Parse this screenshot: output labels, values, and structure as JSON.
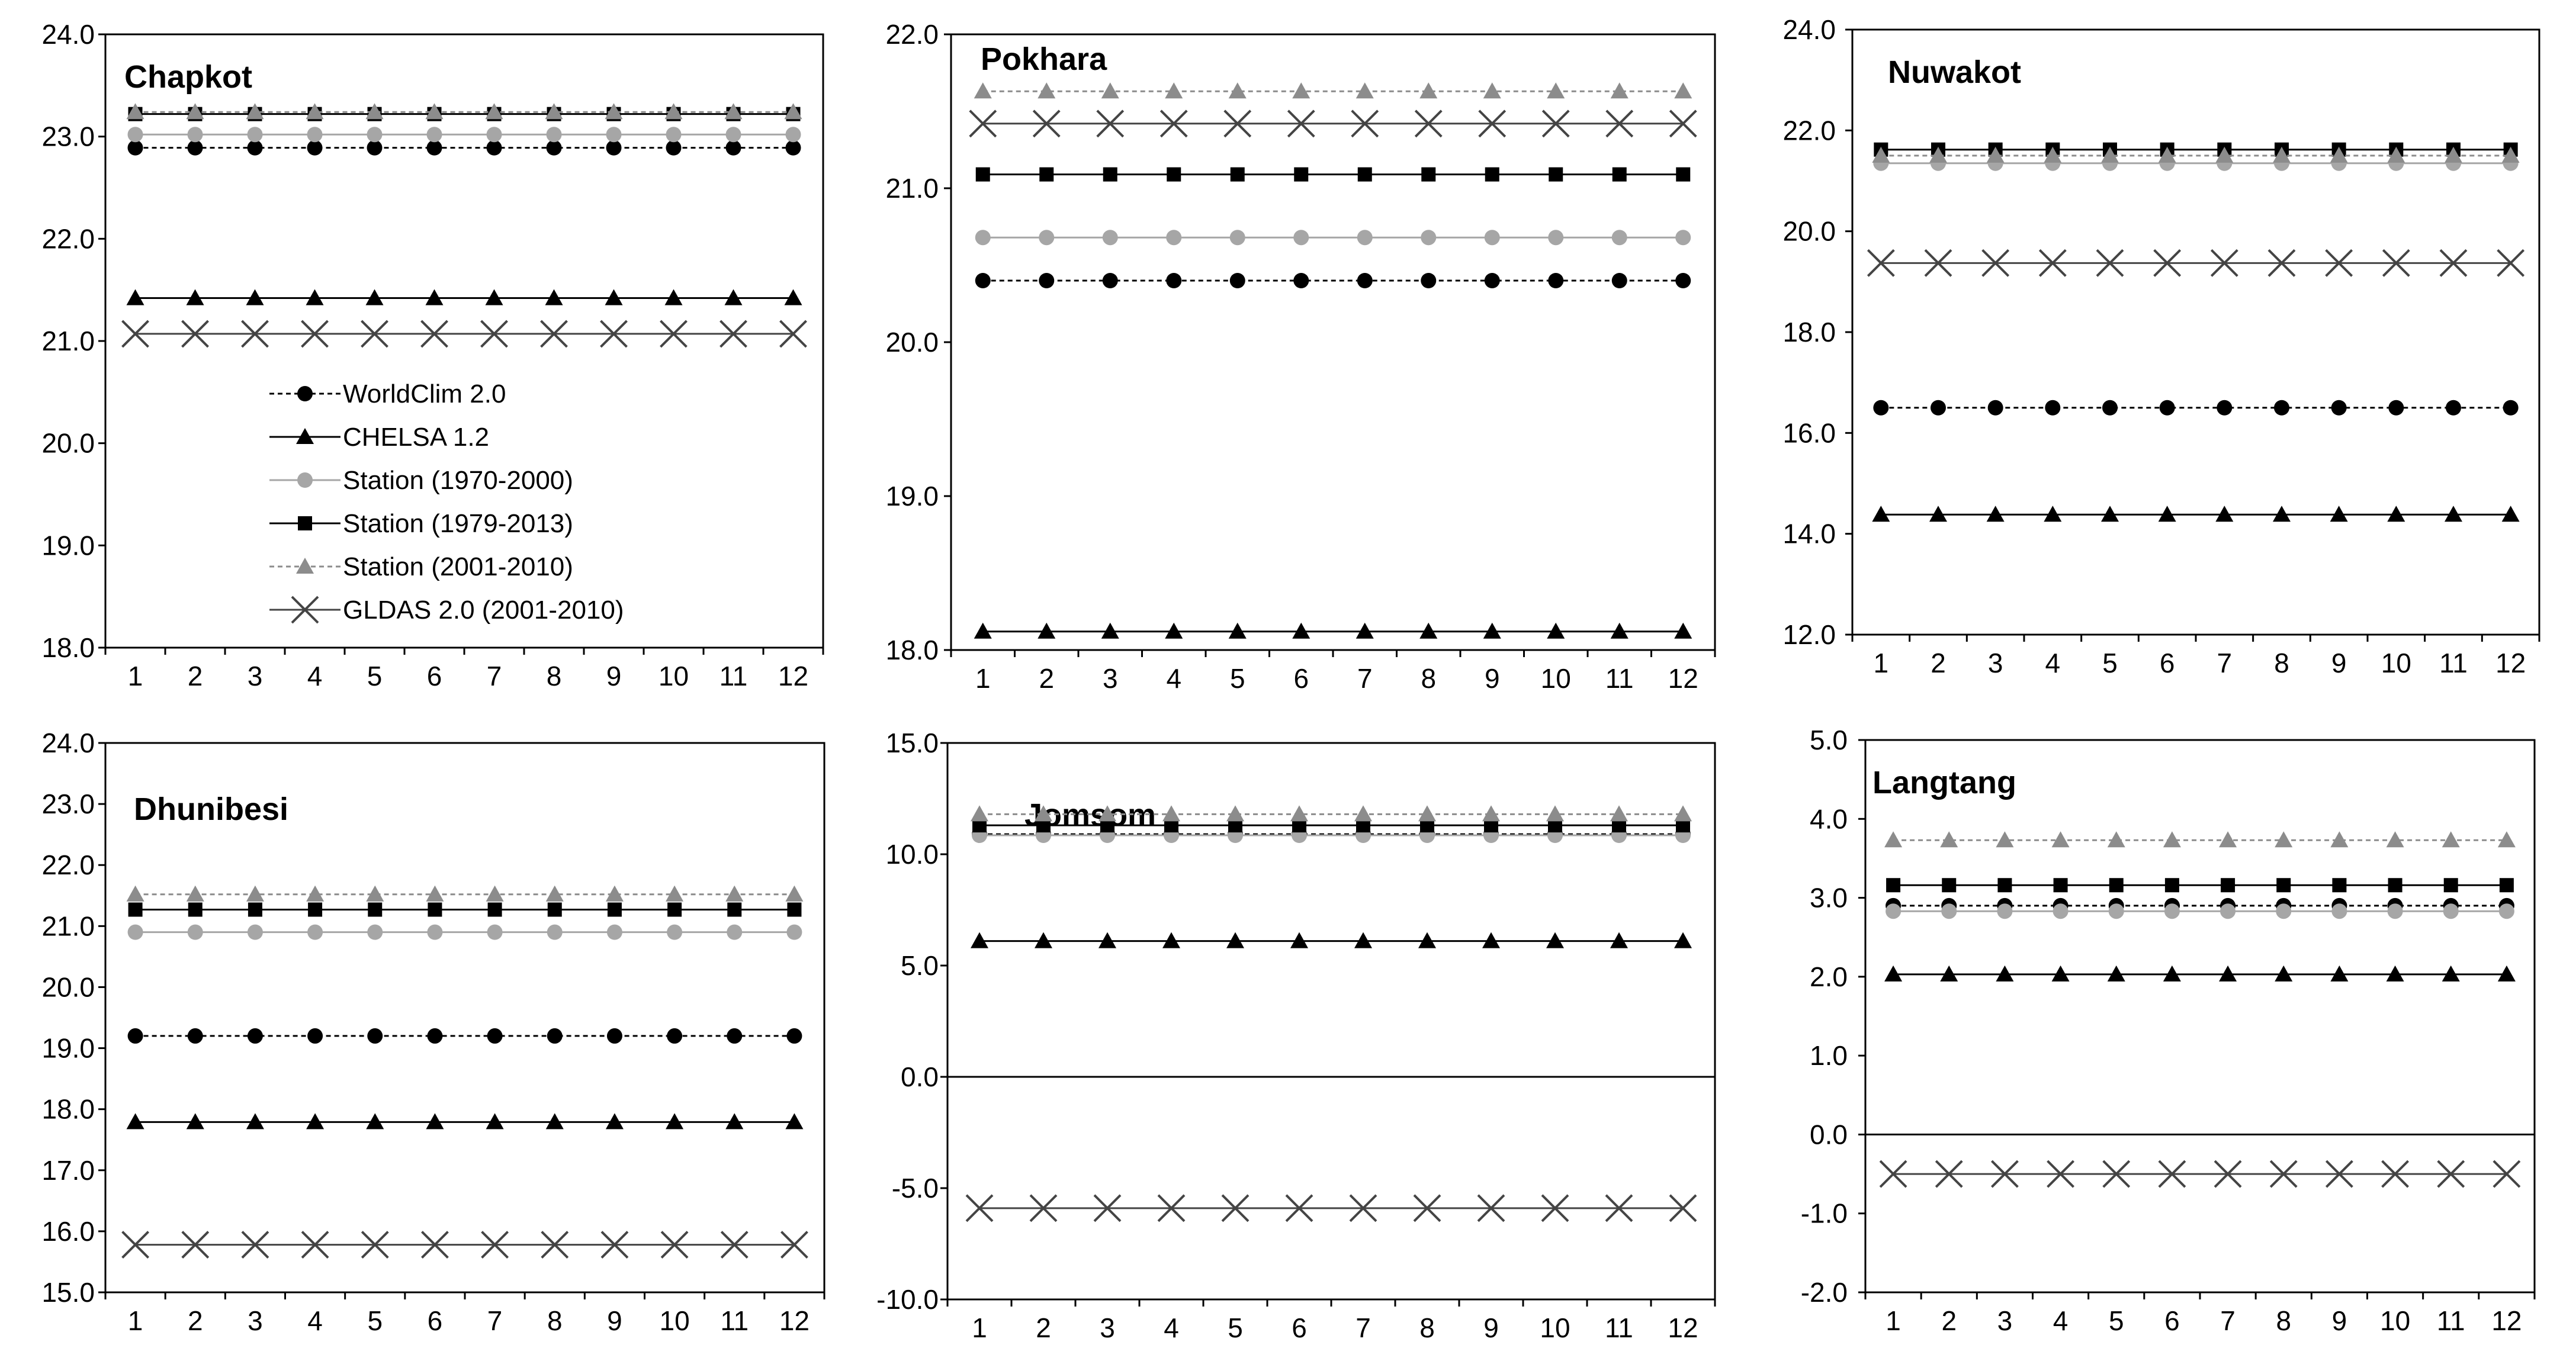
{
  "series_styles": [
    {
      "name": "WorldClim 2.0",
      "color": "#000000",
      "dash": true,
      "marker": "circle"
    },
    {
      "name": "CHELSA 1.2",
      "color": "#000000",
      "dash": false,
      "marker": "triangle"
    },
    {
      "name": "Station (1970-2000)",
      "color": "#a6a6a6",
      "dash": false,
      "marker": "circle"
    },
    {
      "name": "Station (1979-2013)",
      "color": "#000000",
      "dash": false,
      "marker": "square"
    },
    {
      "name": "Station (2001-2010)",
      "color": "#8c8c8c",
      "dash": true,
      "marker": "triangle"
    },
    {
      "name": "GLDAS 2.0 (2001-2010)",
      "color": "#444444",
      "dash": false,
      "marker": "x"
    }
  ],
  "chart_data": [
    {
      "type": "line",
      "title": "Chapkot",
      "categories": [
        "1",
        "2",
        "3",
        "4",
        "5",
        "6",
        "7",
        "8",
        "9",
        "10",
        "11",
        "12"
      ],
      "ylim": [
        18,
        24
      ],
      "yticks": [
        "18.0",
        "19.0",
        "20.0",
        "21.0",
        "22.0",
        "23.0",
        "24.0"
      ],
      "legend": "center-left",
      "series": [
        {
          "name": "WorldClim 2.0",
          "values": [
            22.89,
            22.89,
            22.89,
            22.89,
            22.89,
            22.89,
            22.89,
            22.89,
            22.89,
            22.89,
            22.89,
            22.89
          ]
        },
        {
          "name": "CHELSA 1.2",
          "values": [
            21.42,
            21.42,
            21.42,
            21.42,
            21.42,
            21.42,
            21.42,
            21.42,
            21.42,
            21.42,
            21.42,
            21.42
          ]
        },
        {
          "name": "Station (1970-2000)",
          "values": [
            23.02,
            23.02,
            23.02,
            23.02,
            23.02,
            23.02,
            23.02,
            23.02,
            23.02,
            23.02,
            23.02,
            23.02
          ]
        },
        {
          "name": "Station (1979-2013)",
          "values": [
            23.22,
            23.22,
            23.22,
            23.22,
            23.22,
            23.22,
            23.22,
            23.22,
            23.22,
            23.22,
            23.22,
            23.22
          ]
        },
        {
          "name": "Station (2001-2010)",
          "values": [
            23.24,
            23.24,
            23.24,
            23.24,
            23.24,
            23.24,
            23.24,
            23.24,
            23.24,
            23.24,
            23.24,
            23.24
          ]
        },
        {
          "name": "GLDAS 2.0 (2001-2010)",
          "values": [
            21.07,
            21.07,
            21.07,
            21.07,
            21.07,
            21.07,
            21.07,
            21.07,
            21.07,
            21.07,
            21.07,
            21.07
          ]
        }
      ]
    },
    {
      "type": "line",
      "title": "Pokhara",
      "categories": [
        "1",
        "2",
        "3",
        "4",
        "5",
        "6",
        "7",
        "8",
        "9",
        "10",
        "11",
        "12"
      ],
      "ylim": [
        18,
        22
      ],
      "yticks": [
        "18.0",
        "19.0",
        "20.0",
        "21.0",
        "22.0"
      ],
      "series": [
        {
          "name": "WorldClim 2.0",
          "values": [
            20.4,
            20.4,
            20.4,
            20.4,
            20.4,
            20.4,
            20.4,
            20.4,
            20.4,
            20.4,
            20.4,
            20.4
          ]
        },
        {
          "name": "CHELSA 1.2",
          "values": [
            18.12,
            18.12,
            18.12,
            18.12,
            18.12,
            18.12,
            18.12,
            18.12,
            18.12,
            18.12,
            18.12,
            18.12
          ]
        },
        {
          "name": "Station (1970-2000)",
          "values": [
            20.68,
            20.68,
            20.68,
            20.68,
            20.68,
            20.68,
            20.68,
            20.68,
            20.68,
            20.68,
            20.68,
            20.68
          ]
        },
        {
          "name": "Station (1979-2013)",
          "values": [
            21.09,
            21.09,
            21.09,
            21.09,
            21.09,
            21.09,
            21.09,
            21.09,
            21.09,
            21.09,
            21.09,
            21.09
          ]
        },
        {
          "name": "Station (2001-2010)",
          "values": [
            21.63,
            21.63,
            21.63,
            21.63,
            21.63,
            21.63,
            21.63,
            21.63,
            21.63,
            21.63,
            21.63,
            21.63
          ]
        },
        {
          "name": "GLDAS 2.0 (2001-2010)",
          "values": [
            21.42,
            21.42,
            21.42,
            21.42,
            21.42,
            21.42,
            21.42,
            21.42,
            21.42,
            21.42,
            21.42,
            21.42
          ]
        }
      ]
    },
    {
      "type": "line",
      "title": "Nuwakot",
      "categories": [
        "1",
        "2",
        "3",
        "4",
        "5",
        "6",
        "7",
        "8",
        "9",
        "10",
        "11",
        "12"
      ],
      "ylim": [
        12,
        24
      ],
      "yticks": [
        "12.0",
        "14.0",
        "16.0",
        "18.0",
        "20.0",
        "22.0",
        "24.0"
      ],
      "series": [
        {
          "name": "WorldClim 2.0",
          "values": [
            16.5,
            16.5,
            16.5,
            16.5,
            16.5,
            16.5,
            16.5,
            16.5,
            16.5,
            16.5,
            16.5,
            16.5
          ]
        },
        {
          "name": "CHELSA 1.2",
          "values": [
            14.38,
            14.38,
            14.38,
            14.38,
            14.38,
            14.38,
            14.38,
            14.38,
            14.38,
            14.38,
            14.38,
            14.38
          ]
        },
        {
          "name": "Station (1970-2000)",
          "values": [
            21.35,
            21.35,
            21.35,
            21.35,
            21.35,
            21.35,
            21.35,
            21.35,
            21.35,
            21.35,
            21.35,
            21.35
          ]
        },
        {
          "name": "Station (1979-2013)",
          "values": [
            21.62,
            21.62,
            21.62,
            21.62,
            21.62,
            21.62,
            21.62,
            21.62,
            21.62,
            21.62,
            21.62,
            21.62
          ]
        },
        {
          "name": "Station (2001-2010)",
          "values": [
            21.5,
            21.5,
            21.5,
            21.5,
            21.5,
            21.5,
            21.5,
            21.5,
            21.5,
            21.5,
            21.5,
            21.5
          ]
        },
        {
          "name": "GLDAS 2.0 (2001-2010)",
          "values": [
            19.37,
            19.37,
            19.37,
            19.37,
            19.37,
            19.37,
            19.37,
            19.37,
            19.37,
            19.37,
            19.37,
            19.37
          ]
        }
      ]
    },
    {
      "type": "line",
      "title": "Dhunibesi",
      "categories": [
        "1",
        "2",
        "3",
        "4",
        "5",
        "6",
        "7",
        "8",
        "9",
        "10",
        "11",
        "12"
      ],
      "ylim": [
        15,
        24
      ],
      "yticks": [
        "15.0",
        "16.0",
        "17.0",
        "18.0",
        "19.0",
        "20.0",
        "21.0",
        "22.0",
        "23.0",
        "24.0"
      ],
      "series": [
        {
          "name": "WorldClim 2.0",
          "values": [
            19.2,
            19.2,
            19.2,
            19.2,
            19.2,
            19.2,
            19.2,
            19.2,
            19.2,
            19.2,
            19.2,
            19.2
          ]
        },
        {
          "name": "CHELSA 1.2",
          "values": [
            17.79,
            17.79,
            17.79,
            17.79,
            17.79,
            17.79,
            17.79,
            17.79,
            17.79,
            17.79,
            17.79,
            17.79
          ]
        },
        {
          "name": "Station (1970-2000)",
          "values": [
            20.9,
            20.9,
            20.9,
            20.9,
            20.9,
            20.9,
            20.9,
            20.9,
            20.9,
            20.9,
            20.9,
            20.9
          ]
        },
        {
          "name": "Station (1979-2013)",
          "values": [
            21.27,
            21.27,
            21.27,
            21.27,
            21.27,
            21.27,
            21.27,
            21.27,
            21.27,
            21.27,
            21.27,
            21.27
          ]
        },
        {
          "name": "Station (2001-2010)",
          "values": [
            21.52,
            21.52,
            21.52,
            21.52,
            21.52,
            21.52,
            21.52,
            21.52,
            21.52,
            21.52,
            21.52,
            21.52
          ]
        },
        {
          "name": "GLDAS 2.0 (2001-2010)",
          "values": [
            15.78,
            15.78,
            15.78,
            15.78,
            15.78,
            15.78,
            15.78,
            15.78,
            15.78,
            15.78,
            15.78,
            15.78
          ]
        }
      ]
    },
    {
      "type": "line",
      "title": "Jomsom",
      "categories": [
        "1",
        "2",
        "3",
        "4",
        "5",
        "6",
        "7",
        "8",
        "9",
        "10",
        "11",
        "12"
      ],
      "ylim": [
        -10,
        15
      ],
      "yticks": [
        "-10.0",
        "-5.0",
        "0.0",
        "5.0",
        "10.0",
        "15.0"
      ],
      "series": [
        {
          "name": "WorldClim 2.0",
          "values": [
            10.9,
            10.9,
            10.9,
            10.9,
            10.9,
            10.9,
            10.9,
            10.9,
            10.9,
            10.9,
            10.9,
            10.9
          ]
        },
        {
          "name": "CHELSA 1.2",
          "values": [
            6.1,
            6.1,
            6.1,
            6.1,
            6.1,
            6.1,
            6.1,
            6.1,
            6.1,
            6.1,
            6.1,
            6.1
          ]
        },
        {
          "name": "Station (1970-2000)",
          "values": [
            10.85,
            10.85,
            10.85,
            10.85,
            10.85,
            10.85,
            10.85,
            10.85,
            10.85,
            10.85,
            10.85,
            10.85
          ]
        },
        {
          "name": "Station (1979-2013)",
          "values": [
            11.3,
            11.3,
            11.3,
            11.3,
            11.3,
            11.3,
            11.3,
            11.3,
            11.3,
            11.3,
            11.3,
            11.3
          ]
        },
        {
          "name": "Station (2001-2010)",
          "values": [
            11.8,
            11.8,
            11.8,
            11.8,
            11.8,
            11.8,
            11.8,
            11.8,
            11.8,
            11.8,
            11.8,
            11.8
          ]
        },
        {
          "name": "GLDAS 2.0 (2001-2010)",
          "values": [
            -5.9,
            -5.9,
            -5.9,
            -5.9,
            -5.9,
            -5.9,
            -5.9,
            -5.9,
            -5.9,
            -5.9,
            -5.9,
            -5.9
          ]
        }
      ]
    },
    {
      "type": "line",
      "title": "Langtang",
      "categories": [
        "1",
        "2",
        "3",
        "4",
        "5",
        "6",
        "7",
        "8",
        "9",
        "10",
        "11",
        "12"
      ],
      "ylim": [
        -2,
        5
      ],
      "yticks": [
        "-2.0",
        "-1.0",
        "0.0",
        "1.0",
        "2.0",
        "3.0",
        "4.0",
        "5.0"
      ],
      "series": [
        {
          "name": "WorldClim 2.0",
          "values": [
            2.9,
            2.9,
            2.9,
            2.9,
            2.9,
            2.9,
            2.9,
            2.9,
            2.9,
            2.9,
            2.9,
            2.9
          ]
        },
        {
          "name": "CHELSA 1.2",
          "values": [
            2.03,
            2.03,
            2.03,
            2.03,
            2.03,
            2.03,
            2.03,
            2.03,
            2.03,
            2.03,
            2.03,
            2.03
          ]
        },
        {
          "name": "Station (1970-2000)",
          "values": [
            2.83,
            2.83,
            2.83,
            2.83,
            2.83,
            2.83,
            2.83,
            2.83,
            2.83,
            2.83,
            2.83,
            2.83
          ]
        },
        {
          "name": "Station (1979-2013)",
          "values": [
            3.16,
            3.16,
            3.16,
            3.16,
            3.16,
            3.16,
            3.16,
            3.16,
            3.16,
            3.16,
            3.16,
            3.16
          ]
        },
        {
          "name": "Station (2001-2010)",
          "values": [
            3.73,
            3.73,
            3.73,
            3.73,
            3.73,
            3.73,
            3.73,
            3.73,
            3.73,
            3.73,
            3.73,
            3.73
          ]
        },
        {
          "name": "GLDAS 2.0 (2001-2010)",
          "values": [
            -0.5,
            -0.5,
            -0.5,
            -0.5,
            -0.5,
            -0.5,
            -0.5,
            -0.5,
            -0.5,
            -0.5,
            -0.5,
            -0.5
          ]
        }
      ]
    }
  ]
}
